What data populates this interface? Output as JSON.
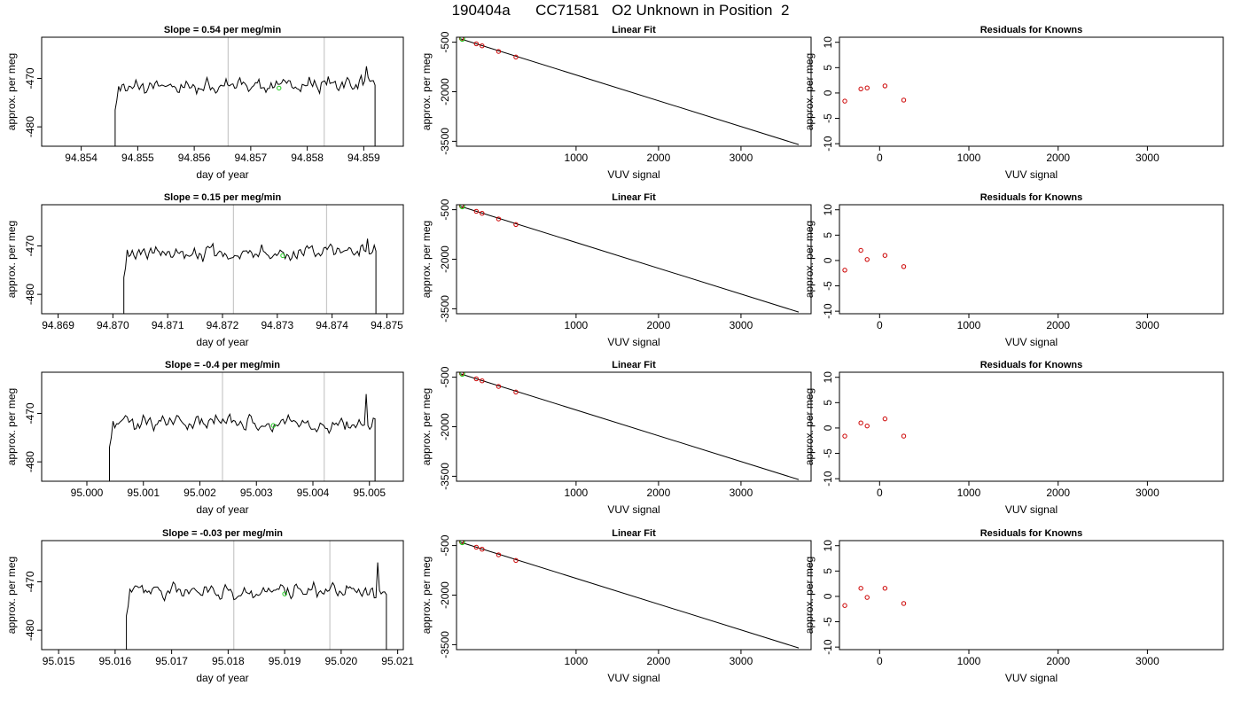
{
  "title": "190404a      CC71581   O2 Unknown in Position  2",
  "colors": {
    "trace": "#000000",
    "known": "#cc0000",
    "unknown": "#22cc22",
    "vline": "#c8c8c8",
    "fit": "#000000"
  },
  "chart_data": [
    {
      "type": "line",
      "row": 0,
      "title": "Slope =  0.54  per meg/min",
      "xlabel": "day of year",
      "ylabel": "approx. per meg",
      "xlim": [
        94.8533,
        94.8597
      ],
      "ylim": [
        -484,
        -461.5
      ],
      "xticks": [
        "94.854",
        "94.855",
        "94.856",
        "94.857",
        "94.858",
        "94.859"
      ],
      "yticks": [
        "-470",
        "-480"
      ],
      "series": [
        {
          "start": 94.8546,
          "end": 94.8592,
          "level": -471.5,
          "edge": "-484",
          "peak": -467.5,
          "trend": 0.54
        }
      ],
      "vlines": [
        94.8566,
        94.8583
      ],
      "marker": {
        "x": 94.8575,
        "y": -472
      }
    },
    {
      "type": "scatter",
      "row": 0,
      "title": "Linear Fit",
      "xlabel": "VUV signal",
      "ylabel": "approx. per meg",
      "xlim": [
        -450,
        3850
      ],
      "ylim": [
        -3650,
        -350
      ],
      "xticks": [
        "1000",
        "2000",
        "3000"
      ],
      "yticks": [
        "-500",
        "-2000",
        "-3500"
      ],
      "fit": {
        "x": [
          -400,
          3700
        ],
        "y": [
          -400,
          -3600
        ]
      },
      "knowns": {
        "x": [
          -390,
          -210,
          -140,
          60,
          270
        ],
        "y": [
          -390,
          -550,
          -610,
          -780,
          -950
        ]
      },
      "unknown": {
        "x": -380,
        "y": -400
      }
    },
    {
      "type": "scatter",
      "row": 0,
      "title": "Residuals for Knowns",
      "xlabel": "VUV signal",
      "ylabel": "approx. per meg",
      "xlim": [
        -450,
        3850
      ],
      "ylim": [
        -10.5,
        11
      ],
      "xticks": [
        "0",
        "1000",
        "2000",
        "3000"
      ],
      "yticks": [
        "10",
        "5",
        "0",
        "-5",
        "-10"
      ],
      "knowns": {
        "x": [
          -390,
          -210,
          -140,
          60,
          270
        ],
        "y": [
          -1.6,
          0.8,
          1.0,
          1.4,
          -1.4
        ]
      }
    },
    {
      "type": "line",
      "row": 1,
      "title": "Slope =  0.15  per meg/min",
      "xlabel": "day of year",
      "ylabel": "approx. per meg",
      "xlim": [
        94.8687,
        94.8753
      ],
      "ylim": [
        -484,
        -461.5
      ],
      "xticks": [
        "94.869",
        "94.870",
        "94.871",
        "94.872",
        "94.873",
        "94.874",
        "94.875"
      ],
      "yticks": [
        "-470",
        "-480"
      ],
      "series": [
        {
          "start": 94.8702,
          "end": 94.8748,
          "level": -471.5,
          "edge": "-484",
          "peak": -468.5,
          "trend": 0.15
        }
      ],
      "vlines": [
        94.8722,
        94.8739
      ],
      "marker": {
        "x": 94.8731,
        "y": -472
      }
    },
    {
      "type": "scatter",
      "row": 1,
      "title": "Linear Fit",
      "xlabel": "VUV signal",
      "ylabel": "approx. per meg",
      "xlim": [
        -450,
        3850
      ],
      "ylim": [
        -3650,
        -350
      ],
      "xticks": [
        "1000",
        "2000",
        "3000"
      ],
      "yticks": [
        "-500",
        "-2000",
        "-3500"
      ],
      "fit": {
        "x": [
          -400,
          3700
        ],
        "y": [
          -400,
          -3600
        ]
      },
      "knowns": {
        "x": [
          -390,
          -210,
          -140,
          60,
          270
        ],
        "y": [
          -390,
          -550,
          -610,
          -780,
          -950
        ]
      },
      "unknown": {
        "x": -380,
        "y": -400
      }
    },
    {
      "type": "scatter",
      "row": 1,
      "title": "Residuals for Knowns",
      "xlabel": "VUV signal",
      "ylabel": "approx. per meg",
      "xlim": [
        -450,
        3850
      ],
      "ylim": [
        -10.5,
        11
      ],
      "xticks": [
        "0",
        "1000",
        "2000",
        "3000"
      ],
      "yticks": [
        "10",
        "5",
        "0",
        "-5",
        "-10"
      ],
      "knowns": {
        "x": [
          -390,
          -210,
          -140,
          60,
          270
        ],
        "y": [
          -1.9,
          2.0,
          0.2,
          1.0,
          -1.2
        ]
      }
    },
    {
      "type": "line",
      "row": 2,
      "title": "Slope =  -0.4  per meg/min",
      "xlabel": "day of year",
      "ylabel": "approx. per meg",
      "xlim": [
        94.9992,
        95.0056
      ],
      "ylim": [
        -484,
        -461.5
      ],
      "xticks": [
        "95.000",
        "95.001",
        "95.002",
        "95.003",
        "95.004",
        "95.005"
      ],
      "yticks": [
        "-470",
        "-480"
      ],
      "series": [
        {
          "start": 95.0004,
          "end": 95.0051,
          "level": -472,
          "edge": "-484",
          "peak": -466,
          "trend": -0.4
        }
      ],
      "vlines": [
        95.0024,
        95.0042
      ],
      "marker": {
        "x": 95.0033,
        "y": -472.5
      }
    },
    {
      "type": "scatter",
      "row": 2,
      "title": "Linear Fit",
      "xlabel": "VUV signal",
      "ylabel": "approx. per meg",
      "xlim": [
        -450,
        3850
      ],
      "ylim": [
        -3650,
        -350
      ],
      "xticks": [
        "1000",
        "2000",
        "3000"
      ],
      "yticks": [
        "-500",
        "-2000",
        "-3500"
      ],
      "fit": {
        "x": [
          -400,
          3700
        ],
        "y": [
          -400,
          -3600
        ]
      },
      "knowns": {
        "x": [
          -390,
          -210,
          -140,
          60,
          270
        ],
        "y": [
          -390,
          -550,
          -610,
          -780,
          -950
        ]
      },
      "unknown": {
        "x": -380,
        "y": -400
      }
    },
    {
      "type": "scatter",
      "row": 2,
      "title": "Residuals for Knowns",
      "xlabel": "VUV signal",
      "ylabel": "approx. per meg",
      "xlim": [
        -450,
        3850
      ],
      "ylim": [
        -10.5,
        11
      ],
      "xticks": [
        "0",
        "1000",
        "2000",
        "3000"
      ],
      "yticks": [
        "10",
        "5",
        "0",
        "-5",
        "-10"
      ],
      "knowns": {
        "x": [
          -390,
          -210,
          -140,
          60,
          270
        ],
        "y": [
          -1.6,
          1.0,
          0.4,
          1.8,
          -1.6
        ]
      }
    },
    {
      "type": "line",
      "row": 3,
      "title": "Slope =  -0.03  per meg/min",
      "xlabel": "day of year",
      "ylabel": "approx. per meg",
      "xlim": [
        95.0147,
        95.0211
      ],
      "ylim": [
        -484,
        -461.5
      ],
      "xticks": [
        "95.015",
        "95.016",
        "95.017",
        "95.018",
        "95.019",
        "95.020",
        "95.021"
      ],
      "yticks": [
        "-470",
        "-480"
      ],
      "series": [
        {
          "start": 95.0162,
          "end": 95.0208,
          "level": -472,
          "edge": "-484",
          "peak": -466,
          "trend": -0.03
        }
      ],
      "vlines": [
        95.0181,
        95.0198
      ],
      "marker": {
        "x": 95.019,
        "y": -472.5
      }
    },
    {
      "type": "scatter",
      "row": 3,
      "title": "Linear Fit",
      "xlabel": "VUV signal",
      "ylabel": "approx. per meg",
      "xlim": [
        -450,
        3850
      ],
      "ylim": [
        -3650,
        -350
      ],
      "xticks": [
        "1000",
        "2000",
        "3000"
      ],
      "yticks": [
        "-500",
        "-2000",
        "-3500"
      ],
      "fit": {
        "x": [
          -400,
          3700
        ],
        "y": [
          -400,
          -3600
        ]
      },
      "knowns": {
        "x": [
          -390,
          -210,
          -140,
          60,
          270
        ],
        "y": [
          -390,
          -550,
          -610,
          -780,
          -950
        ]
      },
      "unknown": {
        "x": -380,
        "y": -400
      }
    },
    {
      "type": "scatter",
      "row": 3,
      "title": "Residuals for Knowns",
      "xlabel": "VUV signal",
      "ylabel": "approx. per meg",
      "xlim": [
        -450,
        3850
      ],
      "ylim": [
        -10.5,
        11
      ],
      "xticks": [
        "0",
        "1000",
        "2000",
        "3000"
      ],
      "yticks": [
        "10",
        "5",
        "0",
        "-5",
        "-10"
      ],
      "knowns": {
        "x": [
          -390,
          -210,
          -140,
          60,
          270
        ],
        "y": [
          -1.8,
          1.6,
          -0.2,
          1.6,
          -1.4
        ]
      }
    }
  ]
}
